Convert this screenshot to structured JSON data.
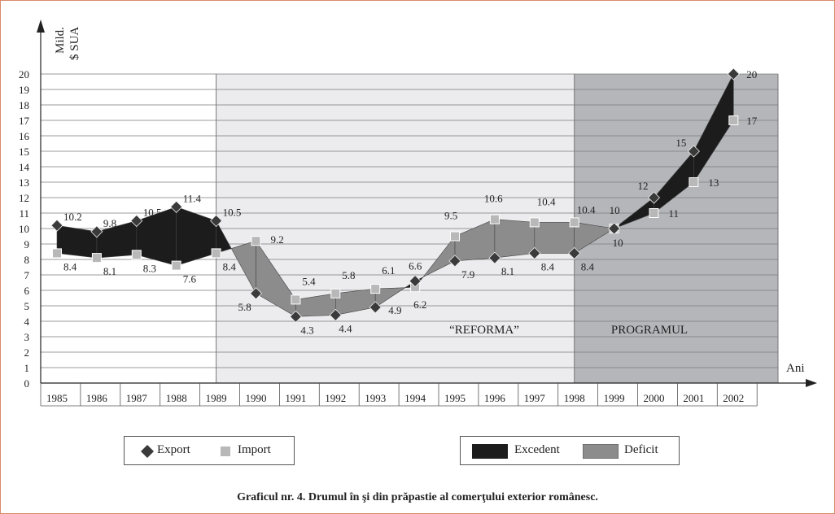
{
  "chart_data": {
    "type": "line",
    "ylabel_line1": "Mild.",
    "ylabel_line2": "$ SUA",
    "xlabel": "Ani",
    "ylim": [
      0,
      20
    ],
    "yticks": [
      0,
      1,
      2,
      3,
      4,
      5,
      6,
      7,
      8,
      9,
      10,
      11,
      12,
      13,
      14,
      15,
      16,
      17,
      18,
      19,
      20
    ],
    "categories": [
      "1985",
      "1986",
      "1987",
      "1988",
      "1989",
      "1990",
      "1991",
      "1992",
      "1993",
      "1994",
      "1995",
      "1996",
      "1997",
      "1998",
      "1999",
      "2000",
      "2001",
      "2002"
    ],
    "series": [
      {
        "name": "Export",
        "values": [
          10.2,
          9.8,
          10.5,
          11.4,
          10.5,
          5.8,
          4.3,
          4.4,
          4.9,
          6.6,
          7.9,
          8.1,
          8.4,
          8.4,
          10,
          12,
          15,
          20
        ],
        "color": "#3a3a3a"
      },
      {
        "name": "Import",
        "values": [
          8.4,
          8.1,
          8.3,
          7.6,
          8.4,
          9.2,
          5.4,
          5.8,
          6.1,
          6.2,
          9.5,
          10.6,
          10.4,
          10.4,
          10,
          11,
          13,
          17
        ],
        "color": "#b8b8b8"
      }
    ],
    "export_labels": [
      "10.2",
      "9.8",
      "10.5",
      "11.4",
      "10.5",
      "5.8",
      "4.3",
      "4.4",
      "4.9",
      "6.6",
      "7.9",
      "8.1",
      "8.4",
      "8.4",
      "10",
      "12",
      "15",
      "20"
    ],
    "import_labels": [
      "8.4",
      "8.1",
      "8.3",
      "7.6",
      "8.4",
      "9.2",
      "5.4",
      "5.8",
      "6.1",
      "6.2",
      "9.5",
      "10.6",
      "10.4",
      "10.4",
      "10",
      "11",
      "13",
      "17"
    ],
    "annotations": [
      {
        "text": "“REFORMA”"
      },
      {
        "text": "PROGRAMUL"
      }
    ],
    "regions": [
      {
        "from": "1989",
        "to": "1998",
        "color": "#ececef"
      },
      {
        "from": "1998",
        "to": "2002",
        "color": "#b4b6ba"
      }
    ],
    "fill_colors": {
      "excedent": "#1c1c1c",
      "deficit": "#8c8c8c"
    },
    "grid": true
  },
  "legend1": {
    "export": "Export",
    "import": "Import"
  },
  "legend2": {
    "excedent": "Excedent",
    "deficit": "Deficit"
  },
  "caption": "Graficul nr. 4. Drumul în şi din prăpastie al comerţului exterior românesc."
}
